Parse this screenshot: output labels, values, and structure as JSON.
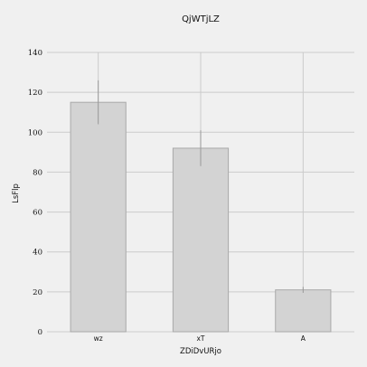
{
  "chart_data": {
    "type": "bar",
    "title": "QjWTjLZ",
    "xlabel": "ZDiDvURjo",
    "ylabel": "LsFlp",
    "categories": [
      "wz",
      "xT",
      "A"
    ],
    "values": [
      115,
      92,
      21
    ],
    "errors": [
      11,
      9,
      1.5
    ],
    "ylim": [
      0,
      140
    ],
    "yticks": [
      0,
      20,
      40,
      60,
      80,
      100,
      120,
      140
    ],
    "grid": true,
    "colors": {
      "background": "#f0f0f0",
      "bar_fill": "#d3d3d3",
      "bar_edge": "#a9a9a9",
      "grid": "#cbcbcb",
      "error_bar": "#999999"
    }
  }
}
